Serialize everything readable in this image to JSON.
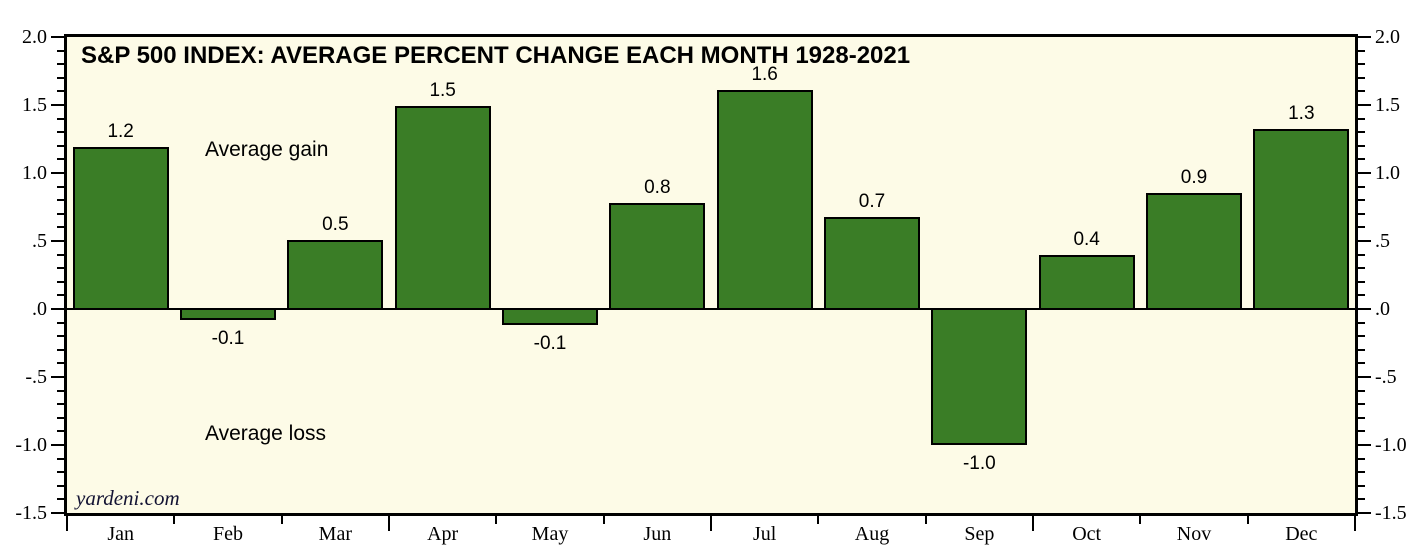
{
  "chart_data": {
    "type": "bar",
    "title": "S&P 500 INDEX: AVERAGE PERCENT CHANGE EACH MONTH 1928-2021",
    "categories": [
      "Jan",
      "Feb",
      "Mar",
      "Apr",
      "May",
      "Jun",
      "Jul",
      "Aug",
      "Sep",
      "Oct",
      "Nov",
      "Dec"
    ],
    "values": [
      1.2,
      -0.1,
      0.5,
      1.5,
      -0.1,
      0.8,
      1.6,
      0.7,
      -1.0,
      0.4,
      0.9,
      1.3
    ],
    "value_labels": [
      "1.2",
      "-0.1",
      "0.5",
      "1.5",
      "-0.1",
      "0.8",
      "1.6",
      "0.7",
      "-1.0",
      "0.4",
      "0.9",
      "1.3"
    ],
    "plotted_heights": [
      1.19,
      -0.08,
      0.51,
      1.49,
      -0.12,
      0.78,
      1.61,
      0.68,
      -1.0,
      0.4,
      0.85,
      1.32
    ],
    "xlabel": "",
    "ylabel": "",
    "ylim": [
      -1.5,
      2.0
    ],
    "y_major_step": 0.5,
    "y_minor_step": 0.1,
    "y_tick_labels": [
      {
        "value": 2.0,
        "text": "2.0"
      },
      {
        "value": 1.5,
        "text": "1.5"
      },
      {
        "value": 1.0,
        "text": "1.0"
      },
      {
        "value": 0.5,
        "text": ".5"
      },
      {
        "value": 0.0,
        "text": ".0"
      },
      {
        "value": -0.5,
        "text": "-.5"
      },
      {
        "value": -1.0,
        "text": "-1.0"
      },
      {
        "value": -1.5,
        "text": "-1.5"
      }
    ],
    "y_axis_sides": [
      "left",
      "right"
    ],
    "x_tick_style": "month boundaries, long tick every quarter",
    "grid": false,
    "legend": null,
    "annotations": {
      "gain": "Average gain",
      "loss": "Average loss"
    },
    "watermark": "yardeni.com",
    "colors": {
      "bar_fill": "#3a7d26",
      "bar_border": "#000000",
      "plot_background": "#fdfbe7",
      "outer_background": "#ffffff",
      "axis_line": "#000000",
      "text": "#000000",
      "watermark_text": "#131333"
    }
  }
}
